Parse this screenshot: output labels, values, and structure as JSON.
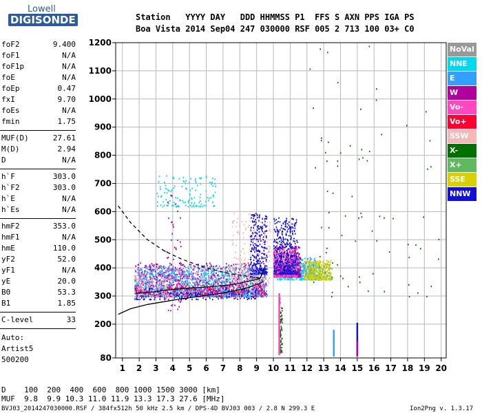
{
  "logo": {
    "line1": "Lowell",
    "line2": "DIGISONDE"
  },
  "header": {
    "row1": "Station   YYYY DAY   DDD HHMMSS P1  FFS S AXN PPS IGA PS",
    "row2": "Boa Vista 2014 Sep04 247 030000 RSF 005 2 713 100 03+ C0"
  },
  "params": [
    {
      "name": "foF2",
      "value": "9.400"
    },
    {
      "name": "foF1",
      "value": "N/A"
    },
    {
      "name": "foF1p",
      "value": "N/A"
    },
    {
      "name": "foE",
      "value": "N/A"
    },
    {
      "name": "foEp",
      "value": "0.47"
    },
    {
      "name": "fxI",
      "value": "9.70"
    },
    {
      "name": "foEs",
      "value": "N/A"
    },
    {
      "name": "fmin",
      "value": "1.75"
    },
    {
      "name": "MUF(D)",
      "value": "27.61"
    },
    {
      "name": "M(D)",
      "value": "2.94"
    },
    {
      "name": "D",
      "value": "N/A"
    },
    {
      "name": "h`F",
      "value": "303.0"
    },
    {
      "name": "h`F2",
      "value": "303.0"
    },
    {
      "name": "h`E",
      "value": "N/A"
    },
    {
      "name": "h`Es",
      "value": "N/A"
    },
    {
      "name": "hmF2",
      "value": "353.0"
    },
    {
      "name": "hmF1",
      "value": "N/A"
    },
    {
      "name": "hmE",
      "value": "110.0"
    },
    {
      "name": "yF2",
      "value": "52.0"
    },
    {
      "name": "yF1",
      "value": "N/A"
    },
    {
      "name": "yE",
      "value": "20.0"
    },
    {
      "name": "B0",
      "value": "53.3"
    },
    {
      "name": "B1",
      "value": "1.85"
    },
    {
      "name": "C-level",
      "value": "33"
    }
  ],
  "auto": {
    "line1": "Auto:",
    "line2": "Artist5",
    "line3": "500200"
  },
  "footer": {
    "d_row": "D    100  200  400  600  800 1000 1500 3000 [km]",
    "muf_row": "MUF  9.8  9.9 10.3 11.0 11.9 13.3 17.3 27.6 [MHz]",
    "file_row": "BVJ03_2014247030000.RSF / 384fx512h 50 kHz 2.5 km / DPS-4D BVJ03 003 / 2.8 N 299.3 E",
    "version": "Ion2Png v. 1.3.17"
  },
  "legend": [
    {
      "label": "NoVal",
      "color": "#999999"
    },
    {
      "label": "NNE",
      "color": "#00d8f0"
    },
    {
      "label": "E",
      "color": "#33a0ff"
    },
    {
      "label": "W",
      "color": "#b000a0"
    },
    {
      "label": "Vo-",
      "color": "#ff48c0"
    },
    {
      "label": "Vo+",
      "color": "#ff0030"
    },
    {
      "label": "SSW",
      "color": "#f4b8b8"
    },
    {
      "label": "X-",
      "color": "#007000"
    },
    {
      "label": "X+",
      "color": "#60b860"
    },
    {
      "label": "SSE",
      "color": "#d8d000"
    },
    {
      "label": "NNW",
      "color": "#1010d8"
    }
  ],
  "chart_data": {
    "type": "scatter",
    "title": "",
    "xlabel": "",
    "ylabel": "",
    "x_ticks": [
      1,
      2,
      3,
      4,
      5,
      6,
      7,
      8,
      9,
      10,
      11,
      12,
      13,
      14,
      15,
      16,
      17,
      18,
      19,
      20
    ],
    "y_ticks": [
      80,
      200,
      300,
      400,
      500,
      600,
      700,
      800,
      900,
      1000,
      1100,
      1200
    ],
    "xlim": [
      0.6,
      20.3
    ],
    "ylim": [
      80,
      1200
    ],
    "grid": true,
    "series": [
      {
        "name": "NNE",
        "clusters": [
          {
            "x": [
              1.7,
              9.5
            ],
            "y": [
              300,
              400
            ],
            "weight": 3
          },
          {
            "x": [
              3.0,
              6.6
            ],
            "y": [
              620,
              730
            ],
            "weight": 0.5
          },
          {
            "x": [
              10.2,
              12.8
            ],
            "y": [
              360,
              420
            ],
            "weight": 1
          }
        ]
      },
      {
        "name": "E",
        "clusters": [
          {
            "x": [
              1.7,
              9.6
            ],
            "y": [
              300,
              410
            ],
            "weight": 4
          },
          {
            "x": [
              10.0,
              12.5
            ],
            "y": [
              370,
              440
            ],
            "weight": 1.5
          }
        ]
      },
      {
        "name": "W",
        "clusters": [
          {
            "x": [
              1.7,
              9.6
            ],
            "y": [
              310,
              420
            ],
            "weight": 2
          },
          {
            "x": [
              10.0,
              11.6
            ],
            "y": [
              370,
              480
            ],
            "weight": 2
          },
          {
            "x": [
              3.5,
              4.5
            ],
            "y": [
              250,
              700
            ],
            "weight": 0.2
          }
        ]
      },
      {
        "name": "Vo-",
        "clusters": [
          {
            "x": [
              1.7,
              9.5
            ],
            "y": [
              300,
              400
            ],
            "weight": 1.5
          },
          {
            "x": [
              10.0,
              11.4
            ],
            "y": [
              370,
              470
            ],
            "weight": 1
          }
        ]
      },
      {
        "name": "Vo+",
        "clusters": [
          {
            "x": [
              1.7,
              9.5
            ],
            "y": [
              300,
              340
            ],
            "weight": 0.6
          }
        ]
      },
      {
        "name": "SSW",
        "clusters": [
          {
            "x": [
              7.5,
              9.8
            ],
            "y": [
              350,
              600
            ],
            "weight": 1
          },
          {
            "x": [
              1.7,
              4.0
            ],
            "y": [
              300,
              380
            ],
            "weight": 0.4
          }
        ]
      },
      {
        "name": "X-",
        "clusters": [
          {
            "x": [
              10.3,
              10.5
            ],
            "y": [
              100,
              300
            ],
            "weight": 0.3
          },
          {
            "x": [
              12,
              20
            ],
            "y": [
              300,
              1200
            ],
            "weight": 0.3
          }
        ]
      },
      {
        "name": "X+",
        "clusters": [
          {
            "x": [
              12.2,
              13.5
            ],
            "y": [
              360,
              420
            ],
            "weight": 0.5
          }
        ]
      },
      {
        "name": "SSE",
        "clusters": [
          {
            "x": [
              11.8,
              13.4
            ],
            "y": [
              360,
              430
            ],
            "weight": 1
          }
        ]
      },
      {
        "name": "NNW",
        "clusters": [
          {
            "x": [
              8.6,
              9.6
            ],
            "y": [
              380,
              600
            ],
            "weight": 1
          },
          {
            "x": [
              10.0,
              11.4
            ],
            "y": [
              380,
              580
            ],
            "weight": 1.5
          },
          {
            "x": [
              1.7,
              9.0
            ],
            "y": [
              290,
              330
            ],
            "weight": 0.6
          }
        ]
      }
    ],
    "traces": [
      {
        "name": "o-trace",
        "color": "#000000",
        "points": [
          [
            1.8,
            310
          ],
          [
            2.5,
            312
          ],
          [
            3.5,
            320
          ],
          [
            4.5,
            326
          ],
          [
            5.5,
            330
          ],
          [
            6.5,
            334
          ],
          [
            7.5,
            340
          ],
          [
            8.5,
            352
          ],
          [
            9.2,
            362
          ],
          [
            9.45,
            395
          ]
        ]
      },
      {
        "name": "profile",
        "color": "#000000",
        "points": [
          [
            0.75,
            235
          ],
          [
            1.5,
            255
          ],
          [
            2.5,
            270
          ],
          [
            3.5,
            280
          ],
          [
            4.5,
            290
          ],
          [
            5.5,
            298
          ],
          [
            6.5,
            306
          ],
          [
            7.5,
            316
          ],
          [
            8.5,
            330
          ],
          [
            9.2,
            345
          ],
          [
            9.4,
            352
          ]
        ]
      },
      {
        "name": "muf",
        "color": "#000000",
        "dashed": true,
        "points": [
          [
            0.75,
            620
          ],
          [
            1.5,
            560
          ],
          [
            2.5,
            500
          ],
          [
            3.5,
            460
          ],
          [
            4.5,
            432
          ],
          [
            5.5,
            410
          ],
          [
            6.5,
            392
          ],
          [
            7.5,
            378
          ],
          [
            8.5,
            370
          ],
          [
            9.3,
            362
          ]
        ]
      }
    ],
    "vertical_bars": [
      {
        "x": 10.35,
        "y": [
          90,
          310
        ],
        "color": "#ff48c0"
      },
      {
        "x": 13.6,
        "y": [
          85,
          180
        ],
        "color": "#33a0ff"
      },
      {
        "x": 15.0,
        "y": [
          85,
          205
        ],
        "color": "#1010d8"
      },
      {
        "x": 15.0,
        "y": [
          85,
          140
        ],
        "color": "#b000a0"
      }
    ]
  }
}
